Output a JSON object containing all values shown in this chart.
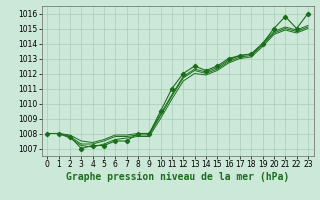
{
  "x": [
    0,
    1,
    2,
    3,
    4,
    5,
    6,
    7,
    8,
    9,
    10,
    11,
    12,
    13,
    14,
    15,
    16,
    17,
    18,
    19,
    20,
    21,
    22,
    23
  ],
  "main_line": [
    1008.0,
    1008.0,
    1007.8,
    1007.0,
    1007.2,
    1007.2,
    1007.5,
    1007.5,
    1008.0,
    1008.0,
    1009.5,
    1011.0,
    1012.0,
    1012.5,
    1012.2,
    1012.5,
    1013.0,
    1013.2,
    1013.3,
    1014.0,
    1015.0,
    1015.8,
    1015.0,
    1016.0
  ],
  "line1": [
    1008.0,
    1008.0,
    1007.8,
    1007.3,
    1007.3,
    1007.5,
    1007.8,
    1007.8,
    1007.9,
    1007.9,
    1009.2,
    1010.5,
    1011.7,
    1012.2,
    1012.0,
    1012.3,
    1012.8,
    1013.1,
    1013.2,
    1013.9,
    1014.7,
    1015.0,
    1014.8,
    1015.1
  ],
  "line2": [
    1008.0,
    1008.0,
    1007.7,
    1007.2,
    1007.1,
    1007.3,
    1007.6,
    1007.7,
    1007.8,
    1007.8,
    1009.0,
    1010.3,
    1011.5,
    1012.0,
    1011.9,
    1012.2,
    1012.7,
    1013.0,
    1013.1,
    1013.8,
    1014.6,
    1014.9,
    1014.7,
    1015.0
  ],
  "line3": [
    1008.0,
    1008.0,
    1007.9,
    1007.5,
    1007.4,
    1007.6,
    1007.9,
    1007.9,
    1008.0,
    1008.0,
    1009.3,
    1010.6,
    1011.8,
    1012.3,
    1012.1,
    1012.4,
    1012.9,
    1013.2,
    1013.3,
    1014.0,
    1014.8,
    1015.1,
    1014.9,
    1015.2
  ],
  "bg_color": "#cce8d8",
  "grid_color": "#aaccbb",
  "line_color": "#1a6e1a",
  "ylim": [
    1006.5,
    1016.5
  ],
  "xlim": [
    -0.5,
    23.5
  ],
  "yticks": [
    1007,
    1008,
    1009,
    1010,
    1011,
    1012,
    1013,
    1014,
    1015,
    1016
  ],
  "xticks": [
    0,
    1,
    2,
    3,
    4,
    5,
    6,
    7,
    8,
    9,
    10,
    11,
    12,
    13,
    14,
    15,
    16,
    17,
    18,
    19,
    20,
    21,
    22,
    23
  ],
  "xlabel": "Graphe pression niveau de la mer (hPa)",
  "xlabel_fontsize": 7,
  "tick_fontsize": 5.5
}
